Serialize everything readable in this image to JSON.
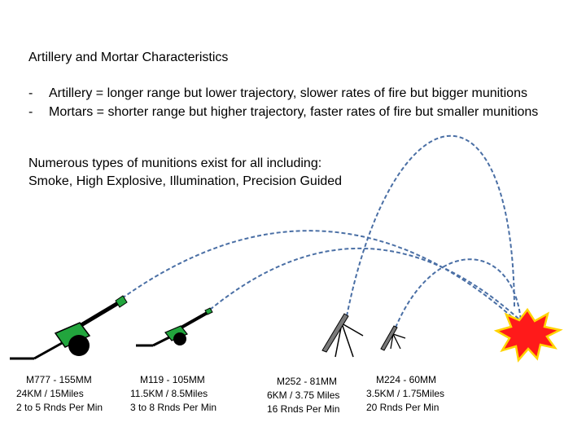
{
  "title": "Artillery and Mortar Characteristics",
  "bullets": [
    {
      "dash": "-",
      "text": "Artillery = longer range but lower trajectory, slower rates of fire but bigger munitions"
    },
    {
      "dash": "-",
      "text": "Mortars = shorter range but higher trajectory, faster rates of fire but smaller munitions"
    }
  ],
  "munitions": {
    "line1": "Numerous types of munitions exist for all including:",
    "line2": "Smoke, High  Explosive, Illumination, Precision Guided"
  },
  "weapons": [
    {
      "name": "M777 - 155MM",
      "range": "24KM / 15Miles",
      "rate": "2 to 5 Rnds Per Min"
    },
    {
      "name": "M119 - 105MM",
      "range": "11.5KM / 8.5Miles",
      "rate": "3 to 8 Rnds Per Min"
    },
    {
      "name": "M252 - 81MM",
      "range": "6KM / 3.75 Miles",
      "rate": "16 Rnds Per Min"
    },
    {
      "name": "M224 - 60MM",
      "range": "3.5KM / 1.75Miles",
      "rate": "20 Rnds Per Min"
    }
  ],
  "colors": {
    "howitzer_body": "#22a53d",
    "trajectory": "#4a6fa5",
    "mortar_tube": "#7a7a7a",
    "explosion_outer": "#ff1a1a",
    "explosion_inner": "#ffd400"
  }
}
